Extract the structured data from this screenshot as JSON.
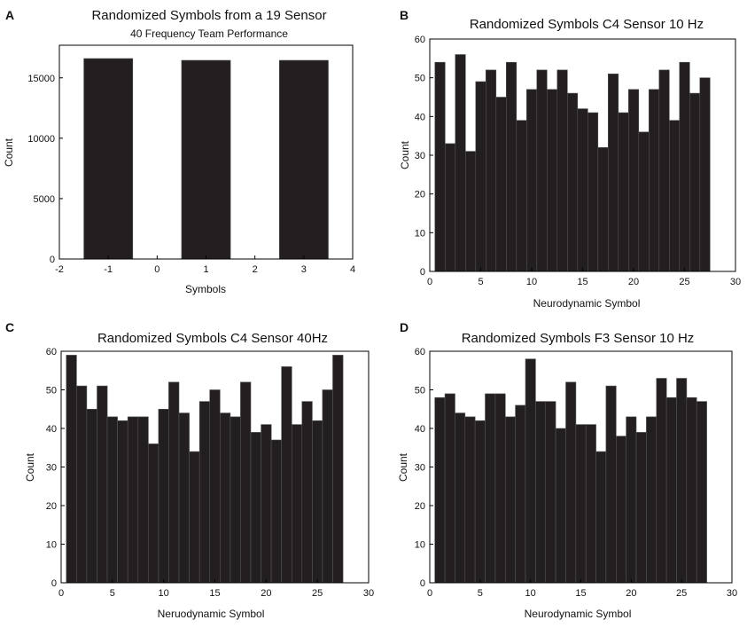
{
  "colors": {
    "bar": "#231f20",
    "axis": "#000000",
    "bar_edge": "#555555"
  },
  "chart_data": [
    {
      "panel": "A",
      "type": "bar",
      "title": "Randomized Symbols from a 19 Sensor",
      "subtitle": "40 Frequency Team Performance",
      "xlabel": "Symbols",
      "ylabel": "Count",
      "xlim": [
        -2,
        4
      ],
      "ylim": [
        0,
        17700
      ],
      "xticks": [
        -2,
        -1,
        0,
        1,
        2,
        3,
        4
      ],
      "xtick_labels": [
        "-2",
        "-1",
        "0",
        "1",
        "2",
        "3",
        "4"
      ],
      "yticks": [
        0,
        5000,
        10000,
        15000
      ],
      "ytick_labels": [
        "0",
        "5000",
        "10000",
        "15000"
      ],
      "bar_width": 1,
      "x": [
        -1,
        1,
        3
      ],
      "values": [
        16600,
        16450,
        16450
      ]
    },
    {
      "panel": "B",
      "type": "bar",
      "title": "Randomized Symbols C4 Sensor 10 Hz",
      "subtitle": "",
      "xlabel": "Neurodynamic Symbol",
      "ylabel": "Count",
      "xlim": [
        0,
        30
      ],
      "ylim": [
        0,
        60
      ],
      "xticks": [
        0,
        5,
        10,
        15,
        20,
        25,
        30
      ],
      "xtick_labels": [
        "0",
        "5",
        "10",
        "15",
        "20",
        "25",
        "30"
      ],
      "yticks": [
        0,
        10,
        20,
        30,
        40,
        50,
        60
      ],
      "ytick_labels": [
        "0",
        "10",
        "20",
        "30",
        "40",
        "50",
        "60"
      ],
      "bar_width": 1,
      "x": [
        1,
        2,
        3,
        4,
        5,
        6,
        7,
        8,
        9,
        10,
        11,
        12,
        13,
        14,
        15,
        16,
        17,
        18,
        19,
        20,
        21,
        22,
        23,
        24,
        25,
        26,
        27
      ],
      "values": [
        54,
        33,
        56,
        31,
        49,
        52,
        45,
        54,
        39,
        47,
        52,
        47,
        52,
        46,
        42,
        41,
        32,
        51,
        41,
        47,
        36,
        47,
        52,
        39,
        54,
        46,
        50
      ]
    },
    {
      "panel": "C",
      "type": "bar",
      "title": "Randomized Symbols C4 Sensor 40Hz",
      "subtitle": "",
      "xlabel": "Neruodynamic Symbol",
      "ylabel": "Count",
      "xlim": [
        0,
        30
      ],
      "ylim": [
        0,
        60
      ],
      "xticks": [
        0,
        5,
        10,
        15,
        20,
        25,
        30
      ],
      "xtick_labels": [
        "0",
        "5",
        "10",
        "15",
        "20",
        "25",
        "30"
      ],
      "yticks": [
        0,
        10,
        20,
        30,
        40,
        50,
        60
      ],
      "ytick_labels": [
        "0",
        "10",
        "20",
        "30",
        "40",
        "50",
        "60"
      ],
      "bar_width": 1,
      "x": [
        1,
        2,
        3,
        4,
        5,
        6,
        7,
        8,
        9,
        10,
        11,
        12,
        13,
        14,
        15,
        16,
        17,
        18,
        19,
        20,
        21,
        22,
        23,
        24,
        25,
        26,
        27
      ],
      "values": [
        59,
        51,
        45,
        51,
        43,
        42,
        43,
        43,
        36,
        45,
        52,
        44,
        34,
        47,
        50,
        44,
        43,
        52,
        39,
        41,
        37,
        56,
        41,
        47,
        42,
        50,
        59
      ]
    },
    {
      "panel": "D",
      "type": "bar",
      "title": "Randomized Symbols F3 Sensor 10 Hz",
      "subtitle": "",
      "xlabel": "Neurodynamic Symbol",
      "ylabel": "Count",
      "xlim": [
        0,
        30
      ],
      "ylim": [
        0,
        60
      ],
      "xticks": [
        0,
        5,
        10,
        15,
        20,
        25,
        30
      ],
      "xtick_labels": [
        "0",
        "5",
        "10",
        "15",
        "20",
        "25",
        "30"
      ],
      "yticks": [
        0,
        10,
        20,
        30,
        40,
        50,
        60
      ],
      "ytick_labels": [
        "0",
        "10",
        "20",
        "30",
        "40",
        "50",
        "60"
      ],
      "bar_width": 1,
      "x": [
        1,
        2,
        3,
        4,
        5,
        6,
        7,
        8,
        9,
        10,
        11,
        12,
        13,
        14,
        15,
        16,
        17,
        18,
        19,
        20,
        21,
        22,
        23,
        24,
        25,
        26,
        27
      ],
      "values": [
        48,
        49,
        44,
        43,
        42,
        49,
        49,
        43,
        46,
        58,
        47,
        47,
        40,
        52,
        41,
        41,
        34,
        51,
        38,
        43,
        39,
        43,
        53,
        48,
        53,
        48,
        47
      ]
    }
  ]
}
